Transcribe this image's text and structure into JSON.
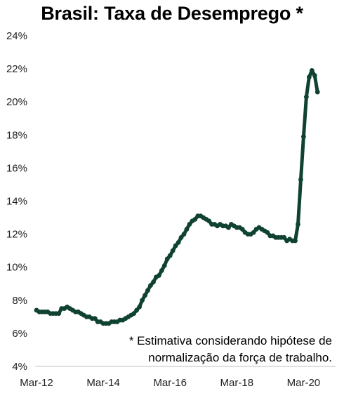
{
  "chart_data": {
    "type": "line",
    "title": "Brasil: Taxa de Desemprego *",
    "xlabel": "",
    "ylabel": "",
    "ylim": [
      4,
      24
    ],
    "yticks": [
      4,
      6,
      8,
      10,
      12,
      14,
      16,
      18,
      20,
      22,
      24
    ],
    "ytick_labels": [
      "4%",
      "6%",
      "8%",
      "10%",
      "12%",
      "14%",
      "16%",
      "18%",
      "20%",
      "22%",
      "24%"
    ],
    "xticks": [
      "2012-03",
      "2014-03",
      "2016-03",
      "2018-03",
      "2020-03"
    ],
    "xtick_labels": [
      "Mar-12",
      "Mar-14",
      "Mar-16",
      "Mar-18",
      "Mar-20"
    ],
    "xlim": [
      "2012-03",
      "2021-02"
    ],
    "grid": false,
    "legend": "none",
    "line_color": "#0f4232",
    "marker": "circle",
    "note_lines": [
      "* Estimativa considerando hipótese de",
      "normalização da força de trabalho."
    ],
    "series": [
      {
        "points": [
          [
            "2012-03",
            7.4
          ],
          [
            "2012-04",
            7.3
          ],
          [
            "2012-05",
            7.3
          ],
          [
            "2012-06",
            7.3
          ],
          [
            "2012-07",
            7.3
          ],
          [
            "2012-08",
            7.2
          ],
          [
            "2012-09",
            7.2
          ],
          [
            "2012-10",
            7.2
          ],
          [
            "2012-11",
            7.2
          ],
          [
            "2012-12",
            7.5
          ],
          [
            "2013-01",
            7.5
          ],
          [
            "2013-02",
            7.6
          ],
          [
            "2013-03",
            7.5
          ],
          [
            "2013-04",
            7.4
          ],
          [
            "2013-05",
            7.3
          ],
          [
            "2013-06",
            7.3
          ],
          [
            "2013-07",
            7.2
          ],
          [
            "2013-08",
            7.1
          ],
          [
            "2013-09",
            7.0
          ],
          [
            "2013-10",
            7.0
          ],
          [
            "2013-11",
            6.9
          ],
          [
            "2013-12",
            6.9
          ],
          [
            "2014-01",
            6.7
          ],
          [
            "2014-02",
            6.7
          ],
          [
            "2014-03",
            6.6
          ],
          [
            "2014-04",
            6.6
          ],
          [
            "2014-05",
            6.6
          ],
          [
            "2014-06",
            6.7
          ],
          [
            "2014-07",
            6.7
          ],
          [
            "2014-08",
            6.7
          ],
          [
            "2014-09",
            6.8
          ],
          [
            "2014-10",
            6.8
          ],
          [
            "2014-11",
            6.9
          ],
          [
            "2014-12",
            7.0
          ],
          [
            "2015-01",
            7.1
          ],
          [
            "2015-02",
            7.2
          ],
          [
            "2015-03",
            7.4
          ],
          [
            "2015-04",
            7.6
          ],
          [
            "2015-05",
            8.0
          ],
          [
            "2015-06",
            8.3
          ],
          [
            "2015-07",
            8.6
          ],
          [
            "2015-08",
            8.9
          ],
          [
            "2015-09",
            9.1
          ],
          [
            "2015-10",
            9.4
          ],
          [
            "2015-11",
            9.5
          ],
          [
            "2015-12",
            9.8
          ],
          [
            "2016-01",
            10.1
          ],
          [
            "2016-02",
            10.5
          ],
          [
            "2016-03",
            10.7
          ],
          [
            "2016-04",
            11.0
          ],
          [
            "2016-05",
            11.3
          ],
          [
            "2016-06",
            11.5
          ],
          [
            "2016-07",
            11.8
          ],
          [
            "2016-08",
            12.0
          ],
          [
            "2016-09",
            12.3
          ],
          [
            "2016-10",
            12.6
          ],
          [
            "2016-11",
            12.8
          ],
          [
            "2016-12",
            12.9
          ],
          [
            "2017-01",
            13.1
          ],
          [
            "2017-02",
            13.1
          ],
          [
            "2017-03",
            13.0
          ],
          [
            "2017-04",
            12.9
          ],
          [
            "2017-05",
            12.8
          ],
          [
            "2017-06",
            12.6
          ],
          [
            "2017-07",
            12.6
          ],
          [
            "2017-08",
            12.5
          ],
          [
            "2017-09",
            12.6
          ],
          [
            "2017-10",
            12.5
          ],
          [
            "2017-11",
            12.5
          ],
          [
            "2017-12",
            12.4
          ],
          [
            "2018-01",
            12.6
          ],
          [
            "2018-02",
            12.5
          ],
          [
            "2018-03",
            12.4
          ],
          [
            "2018-04",
            12.4
          ],
          [
            "2018-05",
            12.3
          ],
          [
            "2018-06",
            12.1
          ],
          [
            "2018-07",
            12.0
          ],
          [
            "2018-08",
            12.0
          ],
          [
            "2018-09",
            12.1
          ],
          [
            "2018-10",
            12.3
          ],
          [
            "2018-11",
            12.4
          ],
          [
            "2018-12",
            12.3
          ],
          [
            "2019-01",
            12.2
          ],
          [
            "2019-02",
            12.1
          ],
          [
            "2019-03",
            11.9
          ],
          [
            "2019-04",
            11.9
          ],
          [
            "2019-05",
            11.8
          ],
          [
            "2019-06",
            11.8
          ],
          [
            "2019-07",
            11.8
          ],
          [
            "2019-08",
            11.8
          ],
          [
            "2019-09",
            11.6
          ],
          [
            "2019-10",
            11.7
          ],
          [
            "2019-11",
            11.6
          ],
          [
            "2019-12",
            11.6
          ],
          [
            "2020-01",
            12.6
          ],
          [
            "2020-02",
            15.3
          ],
          [
            "2020-03",
            17.9
          ],
          [
            "2020-04",
            20.3
          ],
          [
            "2020-05",
            21.5
          ],
          [
            "2020-06",
            21.9
          ],
          [
            "2020-07",
            21.6
          ],
          [
            "2020-08",
            20.6
          ]
        ]
      }
    ]
  }
}
